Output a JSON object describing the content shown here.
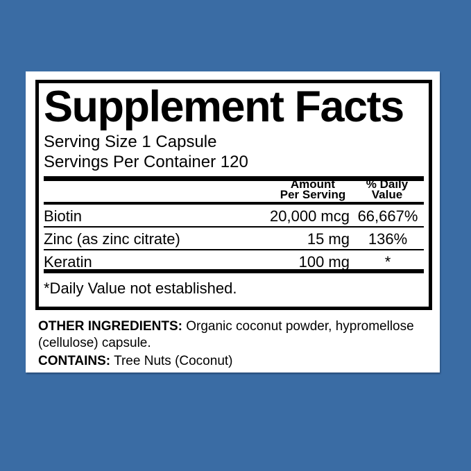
{
  "colors": {
    "background": "#3a6ca4",
    "card": "#ffffff",
    "ink": "#000000"
  },
  "panel": {
    "title": "Supplement Facts",
    "serving_size": "Serving Size 1 Capsule",
    "servings_per_container": "Servings Per Container 120",
    "columns": {
      "amount_line1": "Amount",
      "amount_line2": "Per Serving",
      "daily_value_line1": "% Daily",
      "daily_value_line2": "Value"
    },
    "rows": [
      {
        "name": "Biotin",
        "amount": "20,000 mcg",
        "daily_value": "66,667%"
      },
      {
        "name": "Zinc (as zinc citrate)",
        "amount": "15 mg",
        "daily_value": "136%"
      },
      {
        "name": "Keratin",
        "amount": "100 mg",
        "daily_value": "*"
      }
    ],
    "footnote": "*Daily Value not established."
  },
  "other": {
    "ingredients_label": "OTHER INGREDIENTS:",
    "ingredients_line1": "Organic coconut powder, hypromellose",
    "ingredients_line2": "(cellulose) capsule.",
    "contains_label": "CONTAINS:",
    "contains_text": "Tree Nuts (Coconut)"
  }
}
